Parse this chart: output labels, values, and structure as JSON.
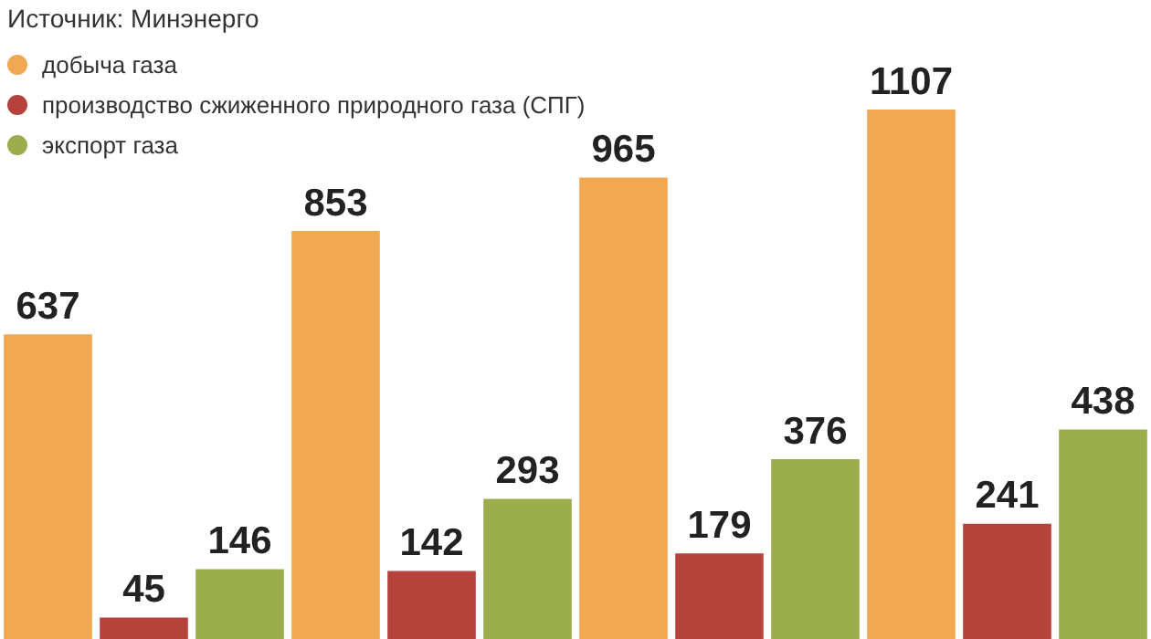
{
  "chart_data": {
    "type": "bar",
    "annotations": [
      "Источник: Минэнерго"
    ],
    "categories": [
      null,
      null,
      null,
      null
    ],
    "series": [
      {
        "name": "добыча газа",
        "color": "#f0a952",
        "values": [
          637,
          853,
          965,
          1107
        ]
      },
      {
        "name": "производство сжиженного природного газа (СПГ)",
        "color": "#b5433b",
        "values": [
          45,
          142,
          179,
          241
        ]
      },
      {
        "name": "экспорт газа",
        "color": "#9bad4c",
        "values": [
          146,
          293,
          376,
          438
        ]
      }
    ],
    "data_labels": true,
    "legend": "top left"
  }
}
